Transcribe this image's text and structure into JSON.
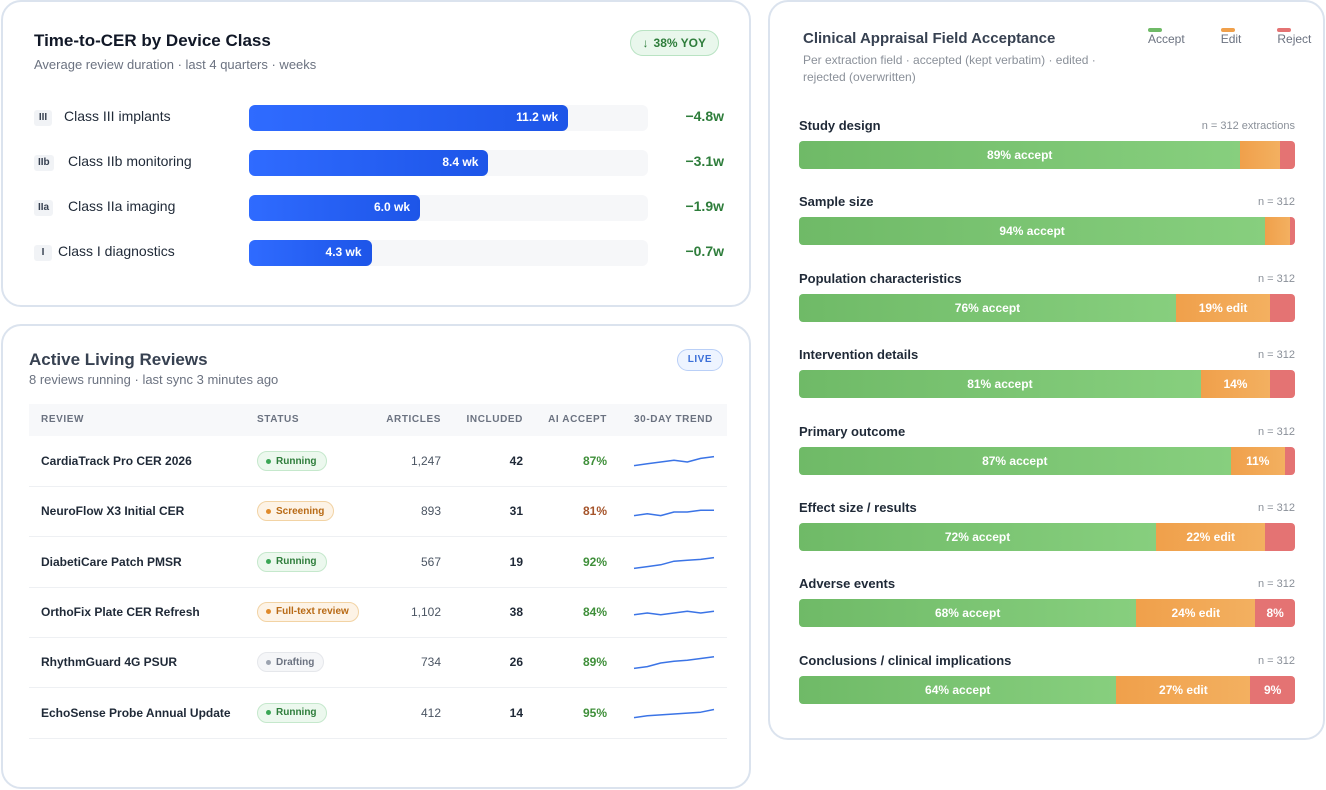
{
  "device_card": {
    "title": "Time-to-CER by Device Class",
    "subtitle": "Average review duration · last 4 quarters · weeks",
    "badge": "38% YOY",
    "max_weeks": 14.0,
    "rows": [
      {
        "chip": "III",
        "name": "Class III implants",
        "weeks": 11.2,
        "value_label": "11.2 wk",
        "delta": "−4.8w"
      },
      {
        "chip": "IIb",
        "name": "Class IIb monitoring",
        "weeks": 8.4,
        "value_label": "8.4 wk",
        "delta": "−3.1w"
      },
      {
        "chip": "IIa",
        "name": "Class IIa imaging",
        "weeks": 6.0,
        "value_label": "6.0 wk",
        "delta": "−1.9w"
      },
      {
        "chip": "I",
        "name": "Class I diagnostics",
        "weeks": 4.3,
        "value_label": "4.3 wk",
        "delta": "−0.7w"
      }
    ]
  },
  "reviews_card": {
    "title": "Active Living Reviews",
    "subtitle": "8 reviews running · last sync 3 minutes ago",
    "badge": "LIVE",
    "columns": [
      "REVIEW",
      "STATUS",
      "ARTICLES",
      "INCLUDED",
      "AI ACCEPT",
      "30-DAY TREND"
    ],
    "rows": [
      {
        "name": "CardiaTrack Pro CER 2026",
        "status": "Running",
        "status_kind": "running",
        "articles": "1,247",
        "included": "42",
        "accept": "87%",
        "accept_color": "#3f8f3a",
        "trend": [
          3,
          4,
          5,
          6,
          5,
          7,
          8
        ]
      },
      {
        "name": "NeuroFlow X3 Initial CER",
        "status": "Screening",
        "status_kind": "screening",
        "articles": "893",
        "included": "31",
        "accept": "81%",
        "accept_color": "#a5542b",
        "trend": [
          3,
          4,
          3,
          5,
          5,
          6,
          6
        ]
      },
      {
        "name": "DiabetiCare Patch PMSR",
        "status": "Running",
        "status_kind": "running",
        "articles": "567",
        "included": "19",
        "accept": "92%",
        "accept_color": "#3f8f3a",
        "trend": [
          2,
          3,
          4,
          6,
          6.5,
          7,
          8
        ]
      },
      {
        "name": "OrthoFix Plate CER Refresh",
        "status": "Full-text review",
        "status_kind": "fulltext",
        "articles": "1,102",
        "included": "38",
        "accept": "84%",
        "accept_color": "#3f8f3a",
        "trend": [
          4,
          5,
          4,
          5,
          6,
          5,
          6
        ]
      },
      {
        "name": "RhythmGuard 4G PSUR",
        "status": "Drafting",
        "status_kind": "drafting",
        "articles": "734",
        "included": "26",
        "accept": "89%",
        "accept_color": "#3f8f3a",
        "trend": [
          2,
          3,
          5,
          6,
          6.5,
          7.5,
          8.5
        ]
      },
      {
        "name": "EchoSense Probe Annual Update",
        "status": "Running",
        "status_kind": "running",
        "articles": "412",
        "included": "14",
        "accept": "95%",
        "accept_color": "#3f8f3a",
        "trend": [
          3,
          4,
          4.5,
          5,
          5.5,
          6,
          7.5
        ]
      }
    ]
  },
  "acceptance_card": {
    "title": "Clinical Appraisal Field Acceptance",
    "subtitle": "Per extraction field · accepted (kept verbatim) · edited · rejected (overwritten)",
    "legend": [
      {
        "label": "Accept",
        "color": "#6fba67"
      },
      {
        "label": "Edit",
        "color": "#f0a04b"
      },
      {
        "label": "Reject",
        "color": "#e47373"
      }
    ],
    "fields": [
      {
        "name": "Study design",
        "n": "n = 312 extractions",
        "accept": 89,
        "edit": 8,
        "reject": 3,
        "accept_label": "89% accept",
        "edit_label": "",
        "reject_label": ""
      },
      {
        "name": "Sample size",
        "n": "n = 312",
        "accept": 94,
        "edit": 5,
        "reject": 1,
        "accept_label": "94% accept",
        "edit_label": "",
        "reject_label": ""
      },
      {
        "name": "Population characteristics",
        "n": "n = 312",
        "accept": 76,
        "edit": 19,
        "reject": 5,
        "accept_label": "76% accept",
        "edit_label": "19% edit",
        "reject_label": ""
      },
      {
        "name": "Intervention details",
        "n": "n = 312",
        "accept": 81,
        "edit": 14,
        "reject": 5,
        "accept_label": "81% accept",
        "edit_label": "14%",
        "reject_label": ""
      },
      {
        "name": "Primary outcome",
        "n": "n = 312",
        "accept": 87,
        "edit": 11,
        "reject": 2,
        "accept_label": "87% accept",
        "edit_label": "11%",
        "reject_label": ""
      },
      {
        "name": "Effect size / results",
        "n": "n = 312",
        "accept": 72,
        "edit": 22,
        "reject": 6,
        "accept_label": "72% accept",
        "edit_label": "22% edit",
        "reject_label": ""
      },
      {
        "name": "Adverse events",
        "n": "n = 312",
        "accept": 68,
        "edit": 24,
        "reject": 8,
        "accept_label": "68% accept",
        "edit_label": "24% edit",
        "reject_label": "8%"
      },
      {
        "name": "Conclusions / clinical implications",
        "n": "n = 312",
        "accept": 64,
        "edit": 27,
        "reject": 9,
        "accept_label": "64% accept",
        "edit_label": "27% edit",
        "reject_label": "9%"
      }
    ]
  }
}
